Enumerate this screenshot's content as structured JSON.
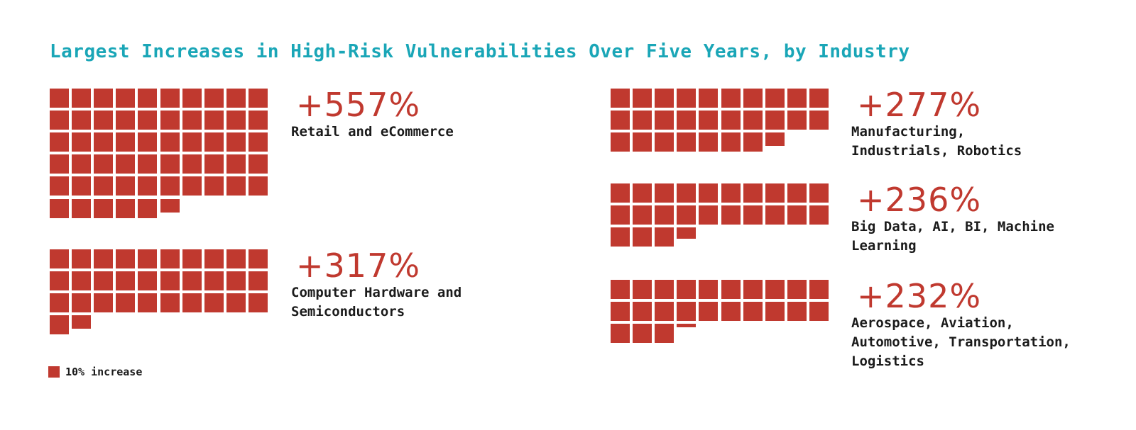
{
  "title": "Largest Increases in High-Risk Vulnerabilities Over Five Years, by Industry",
  "colors": {
    "accent": "#c0392f",
    "title": "#1aa6b7",
    "text": "#1b1b1b"
  },
  "legend": {
    "label": "10% increase",
    "unit_percent": 10
  },
  "chart_data": {
    "type": "waffle",
    "title": "Largest Increases in High-Risk Vulnerabilities Over Five Years, by Industry",
    "unit": "10% increase per square",
    "items": [
      {
        "value": 557,
        "value_label": "+557%",
        "label": "Retail and eCommerce"
      },
      {
        "value": 317,
        "value_label": "+317%",
        "label": "Computer Hardware and Semiconductors"
      },
      {
        "value": 277,
        "value_label": "+277%",
        "label": "Manufacturing, Industrials, Robotics"
      },
      {
        "value": 236,
        "value_label": "+236%",
        "label": "Big Data, AI, BI, Machine Learning"
      },
      {
        "value": 232,
        "value_label": "+232%",
        "label": "Aerospace, Aviation, Automotive, Transportation, Logistics"
      }
    ]
  }
}
